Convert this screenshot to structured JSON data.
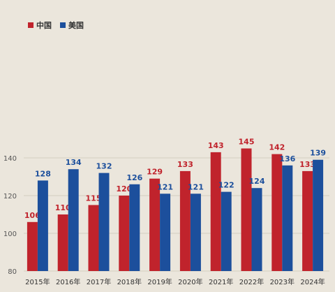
{
  "chart_data": {
    "type": "bar",
    "categories": [
      "2015年",
      "2016年",
      "2017年",
      "2018年",
      "2019年",
      "2020年",
      "2021年",
      "2022年",
      "2023年",
      "2024年"
    ],
    "series": [
      {
        "name": "中国",
        "color": "#c0232c",
        "values": [
          106,
          110,
          115,
          120,
          129,
          133,
          143,
          145,
          142,
          133
        ]
      },
      {
        "name": "美国",
        "color": "#1c4f9c",
        "values": [
          128,
          134,
          132,
          126,
          121,
          121,
          122,
          124,
          136,
          139
        ]
      }
    ],
    "ylim": [
      80,
      145
    ],
    "yticks": [
      80,
      100,
      120,
      140
    ],
    "grid": true,
    "legend_position": "top-left",
    "data_labels": true
  }
}
